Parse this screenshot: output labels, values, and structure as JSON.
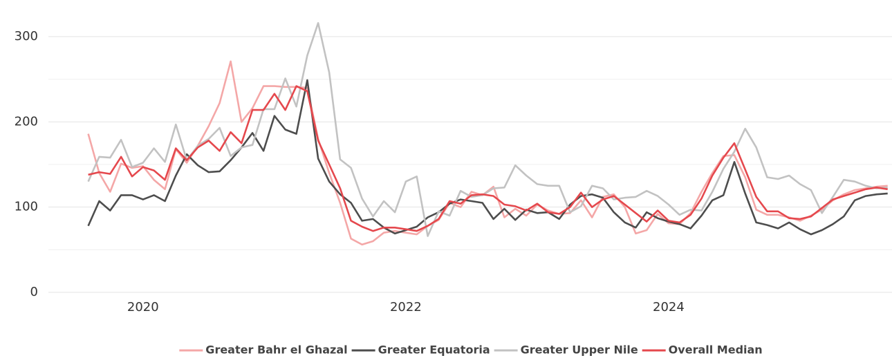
{
  "chart_data": {
    "type": "line",
    "x": [
      2019.583,
      2019.667,
      2019.75,
      2019.833,
      2019.917,
      2020,
      2020.083,
      2020.167,
      2020.25,
      2020.333,
      2020.417,
      2020.5,
      2020.583,
      2020.667,
      2020.75,
      2020.833,
      2020.917,
      2021,
      2021.083,
      2021.167,
      2021.25,
      2021.333,
      2021.417,
      2021.5,
      2021.583,
      2021.667,
      2021.75,
      2021.833,
      2021.917,
      2022,
      2022.083,
      2022.167,
      2022.25,
      2022.333,
      2022.417,
      2022.5,
      2022.583,
      2022.667,
      2022.75,
      2022.833,
      2022.917,
      2023,
      2023.083,
      2023.167,
      2023.25,
      2023.333,
      2023.417,
      2023.5,
      2023.583,
      2023.667,
      2023.75,
      2023.833,
      2023.917,
      2024,
      2024.083,
      2024.167,
      2024.25,
      2024.333,
      2024.417,
      2024.5,
      2024.583,
      2024.667,
      2024.75,
      2024.833,
      2024.917,
      2025,
      2025.083,
      2025.167,
      2025.25,
      2025.333,
      2025.417,
      2025.5,
      2025.583,
      2025.667
    ],
    "series": [
      {
        "name": "Greater Bahr el Ghazal",
        "color": "#f4a7a7",
        "values": [
          186,
          140,
          118,
          151,
          146,
          148,
          132,
          121,
          168,
          152,
          172,
          195,
          222,
          271,
          200,
          216,
          242,
          242,
          241,
          241,
          240,
          180,
          140,
          105,
          63,
          56,
          60,
          70,
          72,
          70,
          68,
          78,
          85,
          105,
          100,
          118,
          114,
          124,
          88,
          98,
          90,
          103,
          96,
          92,
          93,
          108,
          88,
          112,
          115,
          100,
          69,
          73,
          92,
          81,
          80,
          93,
          118,
          140,
          160,
          161,
          135,
          97,
          91,
          91,
          88,
          84,
          90,
          97,
          108,
          115,
          120,
          122,
          124,
          125
        ]
      },
      {
        "name": "Greater Equatoria",
        "color": "#4d4d4d",
        "values": [
          78,
          107,
          96,
          114,
          114,
          109,
          114,
          107,
          137,
          162,
          149,
          141,
          142,
          155,
          170,
          187,
          166,
          207,
          191,
          186,
          249,
          157,
          130,
          115,
          105,
          84,
          86,
          76,
          69,
          73,
          77,
          88,
          94,
          104,
          109,
          107,
          105,
          86,
          98,
          85,
          97,
          93,
          94,
          86,
          103,
          113,
          115,
          111,
          94,
          82,
          76,
          94,
          87,
          83,
          80,
          75,
          90,
          108,
          114,
          153,
          116,
          82,
          79,
          75,
          82,
          74,
          68,
          73,
          80,
          89,
          108,
          113,
          115,
          116
        ]
      },
      {
        "name": "Greater Upper Nile",
        "color": "#c2c2c2",
        "values": [
          130,
          159,
          158,
          179,
          147,
          152,
          169,
          153,
          197,
          155,
          172,
          180,
          193,
          160,
          170,
          173,
          215,
          215,
          251,
          218,
          278,
          316,
          258,
          156,
          146,
          110,
          89,
          107,
          94,
          130,
          136,
          66,
          95,
          90,
          119,
          112,
          114,
          122,
          123,
          149,
          137,
          127,
          125,
          125,
          94,
          101,
          125,
          122,
          109,
          111,
          112,
          119,
          113,
          103,
          91,
          97,
          96,
          118,
          145,
          165,
          192,
          170,
          135,
          133,
          137,
          127,
          120,
          93,
          112,
          132,
          130,
          125,
          122,
          123
        ]
      },
      {
        "name": "Overall Median",
        "color": "#e5484d",
        "values": [
          138,
          141,
          139,
          159,
          136,
          147,
          143,
          132,
          169,
          155,
          170,
          178,
          166,
          188,
          175,
          214,
          214,
          233,
          214,
          242,
          236,
          178,
          150,
          122,
          84,
          77,
          72,
          76,
          76,
          74,
          72,
          78,
          86,
          107,
          104,
          114,
          115,
          113,
          103,
          101,
          96,
          104,
          94,
          92,
          100,
          117,
          100,
          109,
          113,
          103,
          93,
          83,
          96,
          84,
          82,
          91,
          110,
          137,
          158,
          175,
          144,
          112,
          95,
          95,
          87,
          86,
          89,
          99,
          109,
          113,
          117,
          121,
          123,
          121
        ]
      }
    ],
    "xlim": [
      2019.28,
      2025.7
    ],
    "xticks": [
      2020,
      2022,
      2024
    ],
    "ylim": [
      0,
      343
    ],
    "yticks": [
      0,
      100,
      200,
      300
    ],
    "minor_yticks": [
      50,
      150,
      250
    ],
    "grid": true,
    "legend": "bottom"
  }
}
